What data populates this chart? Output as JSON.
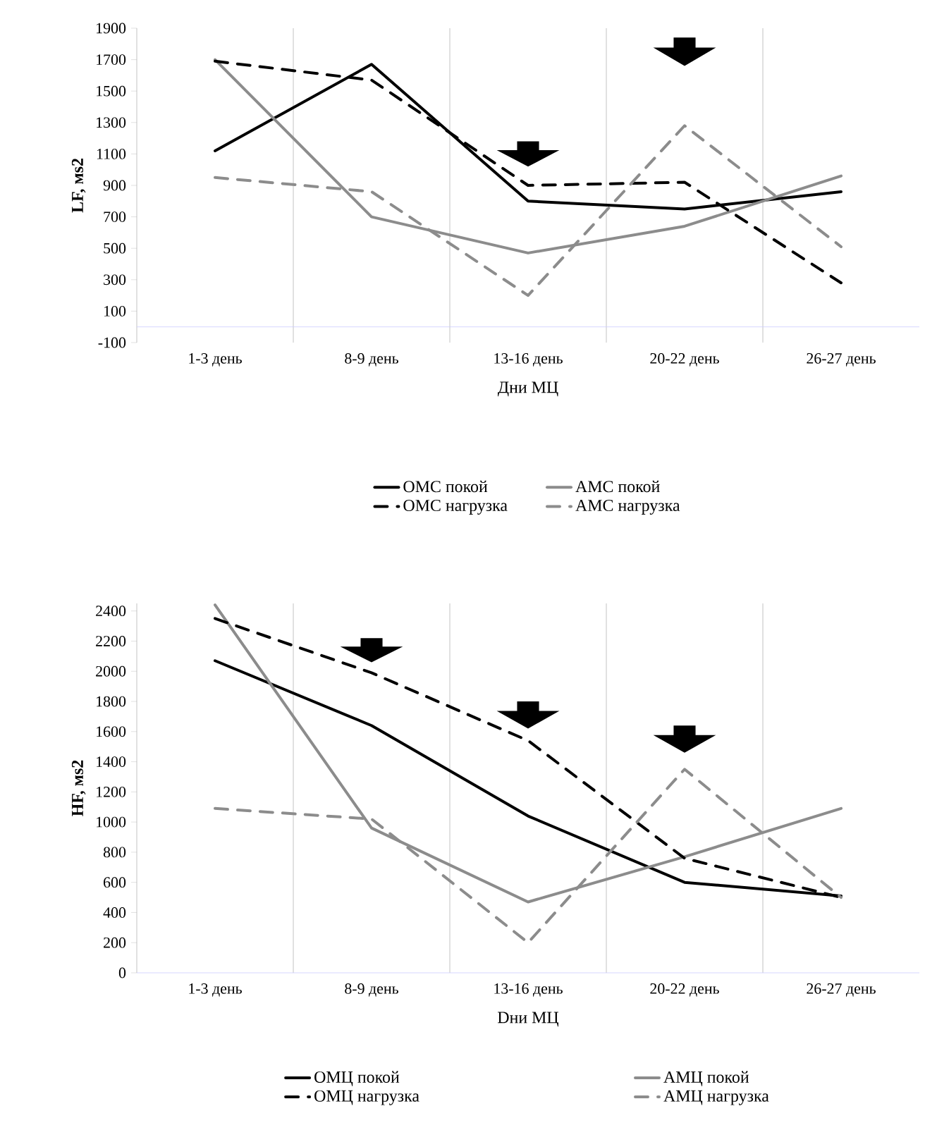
{
  "chart_data": [
    {
      "type": "line",
      "xlabel": "Дни МЦ",
      "ylabel": "LF, мs2",
      "categories": [
        "1-3 день",
        "8-9 день",
        "13-16 день",
        "20-22 день",
        "26-27 день"
      ],
      "series": [
        {
          "name": "ОМС покой",
          "color": "#000000",
          "line_style": "solid",
          "values": [
            1120,
            1670,
            800,
            750,
            860
          ]
        },
        {
          "name": "АМС покой",
          "color": "#8c8c8c",
          "line_style": "solid",
          "values": [
            1700,
            700,
            470,
            640,
            960
          ]
        },
        {
          "name": "ОМС нагрузка",
          "color": "#000000",
          "line_style": "dashed",
          "values": [
            1690,
            1570,
            900,
            920,
            280
          ]
        },
        {
          "name": "АМС нагрузка",
          "color": "#8c8c8c",
          "line_style": "dashed",
          "values": [
            950,
            860,
            200,
            1280,
            510
          ]
        }
      ],
      "ylim": [
        -100,
        1900
      ],
      "yticks": [
        -100,
        100,
        300,
        500,
        700,
        900,
        1100,
        1300,
        1500,
        1700,
        1900
      ],
      "grid": "x",
      "legend": "bottom",
      "marker": "none"
    },
    {
      "type": "line",
      "xlabel": "Dни МЦ",
      "ylabel": "HF, мs2",
      "categories": [
        "1-3 день",
        "8-9 день",
        "13-16 день",
        "20-22 день",
        "26-27 день"
      ],
      "series": [
        {
          "name": "ОМЦ покой",
          "color": "#000000",
          "line_style": "solid",
          "values": [
            2070,
            1640,
            1040,
            600,
            510
          ]
        },
        {
          "name": "АМЦ покой",
          "color": "#8c8c8c",
          "line_style": "solid",
          "values": [
            2440,
            960,
            470,
            770,
            1090
          ]
        },
        {
          "name": "ОМЦ нагрузка",
          "color": "#000000",
          "line_style": "dashed",
          "values": [
            2350,
            1990,
            1540,
            760,
            500
          ]
        },
        {
          "name": "АМЦ нагрузка",
          "color": "#8c8c8c",
          "line_style": "dashed",
          "values": [
            1090,
            1020,
            200,
            1350,
            500
          ]
        }
      ],
      "ylim": [
        0,
        2450
      ],
      "yticks": [
        0,
        200,
        400,
        600,
        800,
        1000,
        1200,
        1400,
        1600,
        1800,
        2000,
        2200,
        2400
      ],
      "grid": "x",
      "legend": "bottom",
      "marker": "none"
    }
  ]
}
